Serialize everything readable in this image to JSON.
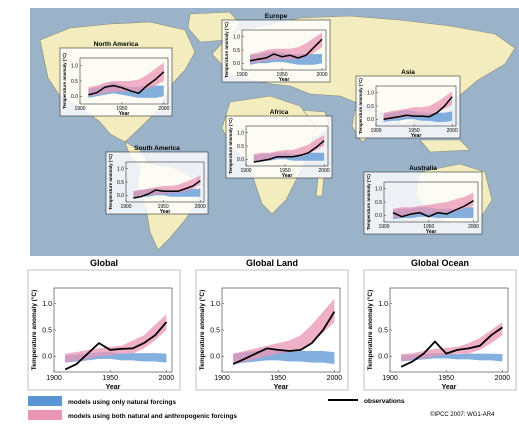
{
  "colors": {
    "ocean": "#9ab3c8",
    "land": "#f3ecbf",
    "natural": "#5b95d6",
    "anthropogenic": "#e996b4",
    "observations": "#000000"
  },
  "regions": [
    {
      "title": "North America",
      "ylabel": "Temperature anomaly (°C)",
      "xlabel": "Year",
      "xticks": [
        "1900",
        "1950",
        "2000"
      ],
      "yticks": [
        "0.0",
        "0.5",
        "1.0"
      ]
    },
    {
      "title": "Europe",
      "ylabel": "Temperature anomaly (°C)",
      "xlabel": "Year",
      "xticks": [
        "1900",
        "1950",
        "2000"
      ],
      "yticks": [
        "0.0",
        "0.5",
        "1.0"
      ]
    },
    {
      "title": "Asia",
      "ylabel": "Temperature anomaly (°C)",
      "xlabel": "Year",
      "xticks": [
        "1900",
        "1950",
        "2000"
      ],
      "yticks": [
        "0.0",
        "0.5",
        "1.0"
      ]
    },
    {
      "title": "Africa",
      "ylabel": "Temperature anomaly (°C)",
      "xlabel": "Year",
      "xticks": [
        "1900",
        "1950",
        "2000"
      ],
      "yticks": [
        "0.0",
        "0.5",
        "1.0"
      ]
    },
    {
      "title": "South America",
      "ylabel": "Temperature anomaly (°C)",
      "xlabel": "Year",
      "xticks": [
        "1900",
        "1950",
        "2000"
      ],
      "yticks": [
        "0.0",
        "0.5",
        "1.0"
      ]
    },
    {
      "title": "Australia",
      "ylabel": "Temperature anomaly (°C)",
      "xlabel": "Year",
      "xticks": [
        "1900",
        "1950",
        "2000"
      ],
      "yticks": [
        "0.0",
        "0.5",
        "1.0"
      ]
    }
  ],
  "panels": [
    {
      "title": "Global",
      "ylabel": "Temperature anomaly (°C)",
      "xlabel": "Year",
      "xticks": [
        "1900",
        "1950",
        "2000"
      ],
      "yticks": [
        "0.0",
        "0.5",
        "1.0"
      ]
    },
    {
      "title": "Global Land",
      "ylabel": "Temperature anomaly (°C)",
      "xlabel": "Year",
      "xticks": [
        "1900",
        "1950",
        "2000"
      ],
      "yticks": [
        "0.0",
        "0.5",
        "1.0"
      ]
    },
    {
      "title": "Global Ocean",
      "ylabel": "Temperature anomaly (°C)",
      "xlabel": "Year",
      "xticks": [
        "1900",
        "1950",
        "2000"
      ],
      "yticks": [
        "0.0",
        "0.5",
        "1.0"
      ]
    }
  ],
  "legend": {
    "natural": "models using only natural forcings",
    "anthropogenic": "models using both natural and anthropogenic forcings",
    "observations": "observations"
  },
  "credit": "©IPCC 2007: WG1-AR4",
  "chart_data": [
    {
      "type": "line",
      "title": "North America",
      "xlabel": "Year",
      "ylabel": "Temperature anomaly (°C)",
      "xlim": [
        1900,
        2005
      ],
      "ylim": [
        -0.25,
        1.25
      ],
      "x": [
        1910,
        1920,
        1930,
        1940,
        1950,
        1960,
        1970,
        1980,
        1990,
        2000
      ],
      "series": [
        {
          "name": "observations",
          "values": [
            0.05,
            0.12,
            0.3,
            0.35,
            0.28,
            0.18,
            0.1,
            0.35,
            0.55,
            0.8
          ]
        },
        {
          "name": "models using only natural forcings",
          "lower": [
            -0.05,
            0.0,
            0.05,
            0.1,
            0.05,
            0.0,
            -0.05,
            -0.05,
            -0.05,
            0.0
          ],
          "upper": [
            0.25,
            0.3,
            0.35,
            0.45,
            0.35,
            0.3,
            0.3,
            0.35,
            0.35,
            0.35
          ]
        },
        {
          "name": "models using both natural and anthropogenic forcings",
          "lower": [
            0.0,
            0.05,
            0.1,
            0.15,
            0.15,
            0.15,
            0.15,
            0.25,
            0.35,
            0.5
          ],
          "upper": [
            0.3,
            0.35,
            0.45,
            0.5,
            0.5,
            0.5,
            0.55,
            0.7,
            0.9,
            1.1
          ]
        }
      ]
    },
    {
      "type": "line",
      "title": "Europe",
      "xlabel": "Year",
      "ylabel": "Temperature anomaly (°C)",
      "xlim": [
        1900,
        2005
      ],
      "ylim": [
        -0.25,
        1.25
      ],
      "x": [
        1910,
        1920,
        1930,
        1940,
        1950,
        1960,
        1970,
        1980,
        1990,
        2000
      ],
      "series": [
        {
          "name": "observations",
          "values": [
            0.1,
            0.15,
            0.2,
            0.35,
            0.25,
            0.3,
            0.2,
            0.3,
            0.6,
            0.9
          ]
        },
        {
          "name": "models using only natural forcings",
          "lower": [
            -0.05,
            0.0,
            0.0,
            0.05,
            0.05,
            0.0,
            -0.05,
            -0.05,
            -0.05,
            0.0
          ],
          "upper": [
            0.3,
            0.35,
            0.4,
            0.45,
            0.4,
            0.35,
            0.35,
            0.35,
            0.35,
            0.35
          ]
        },
        {
          "name": "models using both natural and anthropogenic forcings",
          "lower": [
            0.0,
            0.05,
            0.1,
            0.15,
            0.15,
            0.15,
            0.15,
            0.25,
            0.4,
            0.6
          ],
          "upper": [
            0.35,
            0.4,
            0.5,
            0.55,
            0.55,
            0.55,
            0.6,
            0.75,
            0.95,
            1.15
          ]
        }
      ]
    },
    {
      "type": "line",
      "title": "Asia",
      "xlabel": "Year",
      "ylabel": "Temperature anomaly (°C)",
      "xlim": [
        1900,
        2005
      ],
      "ylim": [
        -0.25,
        1.25
      ],
      "x": [
        1910,
        1920,
        1930,
        1940,
        1950,
        1960,
        1970,
        1980,
        1990,
        2000
      ],
      "series": [
        {
          "name": "observations",
          "values": [
            0.0,
            0.05,
            0.1,
            0.15,
            0.12,
            0.12,
            0.1,
            0.25,
            0.5,
            0.85
          ]
        },
        {
          "name": "models using only natural forcings",
          "lower": [
            -0.1,
            -0.05,
            -0.05,
            0.0,
            0.0,
            -0.05,
            -0.05,
            -0.1,
            -0.1,
            -0.05
          ],
          "upper": [
            0.2,
            0.25,
            0.3,
            0.35,
            0.3,
            0.25,
            0.25,
            0.25,
            0.25,
            0.3
          ]
        },
        {
          "name": "models using both natural and anthropogenic forcings",
          "lower": [
            -0.05,
            0.0,
            0.05,
            0.1,
            0.1,
            0.1,
            0.15,
            0.25,
            0.4,
            0.55
          ],
          "upper": [
            0.25,
            0.3,
            0.35,
            0.4,
            0.45,
            0.45,
            0.5,
            0.65,
            0.85,
            1.05
          ]
        }
      ]
    },
    {
      "type": "line",
      "title": "Africa",
      "xlabel": "Year",
      "ylabel": "Temperature anomaly (°C)",
      "xlim": [
        1900,
        2005
      ],
      "ylim": [
        -0.25,
        1.25
      ],
      "x": [
        1910,
        1920,
        1930,
        1940,
        1950,
        1960,
        1970,
        1980,
        1990,
        2000
      ],
      "series": [
        {
          "name": "observations",
          "values": [
            -0.1,
            -0.05,
            0.0,
            0.1,
            0.1,
            0.1,
            0.15,
            0.25,
            0.45,
            0.7
          ]
        },
        {
          "name": "models using only natural forcings",
          "lower": [
            -0.1,
            -0.05,
            -0.05,
            0.0,
            0.0,
            -0.05,
            -0.05,
            -0.05,
            -0.05,
            -0.05
          ],
          "upper": [
            0.15,
            0.2,
            0.2,
            0.25,
            0.25,
            0.2,
            0.2,
            0.25,
            0.25,
            0.25
          ]
        },
        {
          "name": "models using both natural and anthropogenic forcings",
          "lower": [
            -0.1,
            -0.05,
            0.0,
            0.05,
            0.05,
            0.1,
            0.1,
            0.2,
            0.35,
            0.5
          ],
          "upper": [
            0.2,
            0.25,
            0.25,
            0.3,
            0.35,
            0.35,
            0.45,
            0.55,
            0.75,
            0.9
          ]
        }
      ]
    },
    {
      "type": "line",
      "title": "South America",
      "xlabel": "Year",
      "ylabel": "Temperature anomaly (°C)",
      "xlim": [
        1900,
        2005
      ],
      "ylim": [
        -0.25,
        1.25
      ],
      "x": [
        1910,
        1920,
        1930,
        1940,
        1950,
        1960,
        1970,
        1980,
        1990,
        2000
      ],
      "series": [
        {
          "name": "observations",
          "values": [
            -0.1,
            -0.05,
            0.05,
            0.2,
            0.15,
            0.15,
            0.15,
            0.25,
            0.35,
            0.55
          ]
        },
        {
          "name": "models using only natural forcings",
          "lower": [
            -0.1,
            -0.05,
            -0.05,
            0.0,
            0.0,
            -0.05,
            -0.05,
            -0.05,
            -0.05,
            -0.05
          ],
          "upper": [
            0.15,
            0.2,
            0.25,
            0.25,
            0.25,
            0.2,
            0.2,
            0.25,
            0.25,
            0.25
          ]
        },
        {
          "name": "models using both natural and anthropogenic forcings",
          "lower": [
            -0.1,
            -0.05,
            0.0,
            0.05,
            0.05,
            0.1,
            0.1,
            0.15,
            0.25,
            0.4
          ],
          "upper": [
            0.15,
            0.2,
            0.25,
            0.3,
            0.35,
            0.35,
            0.4,
            0.5,
            0.6,
            0.75
          ]
        }
      ]
    },
    {
      "type": "line",
      "title": "Australia",
      "xlabel": "Year",
      "ylabel": "Temperature anomaly (°C)",
      "xlim": [
        1900,
        2005
      ],
      "ylim": [
        -0.25,
        1.25
      ],
      "x": [
        1910,
        1920,
        1930,
        1940,
        1950,
        1960,
        1970,
        1980,
        1990,
        2000
      ],
      "series": [
        {
          "name": "observations",
          "values": [
            0.1,
            -0.05,
            0.05,
            0.1,
            -0.05,
            0.1,
            0.05,
            0.2,
            0.35,
            0.55
          ]
        },
        {
          "name": "models using only natural forcings",
          "lower": [
            -0.15,
            -0.1,
            -0.1,
            -0.05,
            -0.05,
            -0.1,
            -0.1,
            -0.1,
            -0.1,
            -0.1
          ],
          "upper": [
            0.2,
            0.25,
            0.25,
            0.3,
            0.3,
            0.25,
            0.25,
            0.25,
            0.3,
            0.3
          ]
        },
        {
          "name": "models using both natural and anthropogenic forcings",
          "lower": [
            -0.1,
            -0.05,
            0.0,
            0.05,
            0.05,
            0.1,
            0.1,
            0.15,
            0.25,
            0.35
          ],
          "upper": [
            0.25,
            0.3,
            0.3,
            0.35,
            0.4,
            0.45,
            0.5,
            0.6,
            0.7,
            0.85
          ]
        }
      ]
    },
    {
      "type": "line",
      "title": "Global",
      "xlabel": "Year",
      "ylabel": "Temperature anomaly (°C)",
      "xlim": [
        1900,
        2005
      ],
      "ylim": [
        -0.3,
        1.3
      ],
      "x": [
        1910,
        1920,
        1930,
        1940,
        1950,
        1960,
        1970,
        1980,
        1990,
        2000
      ],
      "series": [
        {
          "name": "observations",
          "values": [
            -0.25,
            -0.15,
            0.05,
            0.25,
            0.12,
            0.14,
            0.15,
            0.25,
            0.4,
            0.65
          ]
        },
        {
          "name": "models using only natural forcings",
          "lower": [
            -0.12,
            -0.1,
            -0.08,
            -0.05,
            -0.05,
            -0.08,
            -0.08,
            -0.1,
            -0.1,
            -0.12
          ],
          "upper": [
            0.02,
            0.03,
            0.05,
            0.08,
            0.08,
            0.05,
            0.06,
            0.06,
            0.06,
            0.05
          ]
        },
        {
          "name": "models using both natural and anthropogenic forcings",
          "lower": [
            -0.12,
            -0.08,
            -0.05,
            0.0,
            0.02,
            0.05,
            0.05,
            0.15,
            0.3,
            0.5
          ],
          "upper": [
            0.05,
            0.08,
            0.12,
            0.15,
            0.18,
            0.2,
            0.3,
            0.4,
            0.6,
            0.8
          ]
        }
      ]
    },
    {
      "type": "line",
      "title": "Global Land",
      "xlabel": "Year",
      "ylabel": "Temperature anomaly (°C)",
      "xlim": [
        1900,
        2005
      ],
      "ylim": [
        -0.3,
        1.3
      ],
      "x": [
        1910,
        1920,
        1930,
        1940,
        1950,
        1960,
        1970,
        1980,
        1990,
        2000
      ],
      "series": [
        {
          "name": "observations",
          "values": [
            -0.15,
            -0.05,
            0.05,
            0.15,
            0.12,
            0.1,
            0.12,
            0.25,
            0.5,
            0.85
          ]
        },
        {
          "name": "models using only natural forcings",
          "lower": [
            -0.15,
            -0.12,
            -0.1,
            -0.08,
            -0.08,
            -0.1,
            -0.1,
            -0.12,
            -0.12,
            -0.15
          ],
          "upper": [
            0.05,
            0.08,
            0.1,
            0.12,
            0.12,
            0.1,
            0.1,
            0.1,
            0.1,
            0.08
          ]
        },
        {
          "name": "models using both natural and anthropogenic forcings",
          "lower": [
            -0.15,
            -0.1,
            -0.05,
            0.0,
            0.05,
            0.08,
            0.1,
            0.25,
            0.45,
            0.65
          ],
          "upper": [
            0.05,
            0.1,
            0.15,
            0.2,
            0.25,
            0.3,
            0.4,
            0.6,
            0.85,
            1.1
          ]
        }
      ]
    },
    {
      "type": "line",
      "title": "Global Ocean",
      "xlabel": "Year",
      "ylabel": "Temperature anomaly (°C)",
      "xlim": [
        1900,
        2005
      ],
      "ylim": [
        -0.3,
        1.3
      ],
      "x": [
        1910,
        1920,
        1930,
        1940,
        1950,
        1960,
        1970,
        1980,
        1990,
        2000
      ],
      "series": [
        {
          "name": "observations",
          "values": [
            -0.2,
            -0.1,
            0.05,
            0.28,
            0.05,
            0.12,
            0.15,
            0.2,
            0.4,
            0.55
          ]
        },
        {
          "name": "models using only natural forcings",
          "lower": [
            -0.1,
            -0.08,
            -0.06,
            -0.04,
            -0.04,
            -0.06,
            -0.06,
            -0.08,
            -0.08,
            -0.1
          ],
          "upper": [
            0.02,
            0.03,
            0.05,
            0.06,
            0.06,
            0.04,
            0.05,
            0.05,
            0.05,
            0.04
          ]
        },
        {
          "name": "models using both natural and anthropogenic forcings",
          "lower": [
            -0.1,
            -0.06,
            -0.04,
            0.0,
            0.02,
            0.05,
            0.05,
            0.12,
            0.25,
            0.4
          ],
          "upper": [
            0.04,
            0.06,
            0.1,
            0.14,
            0.16,
            0.18,
            0.25,
            0.35,
            0.5,
            0.65
          ]
        }
      ]
    }
  ]
}
